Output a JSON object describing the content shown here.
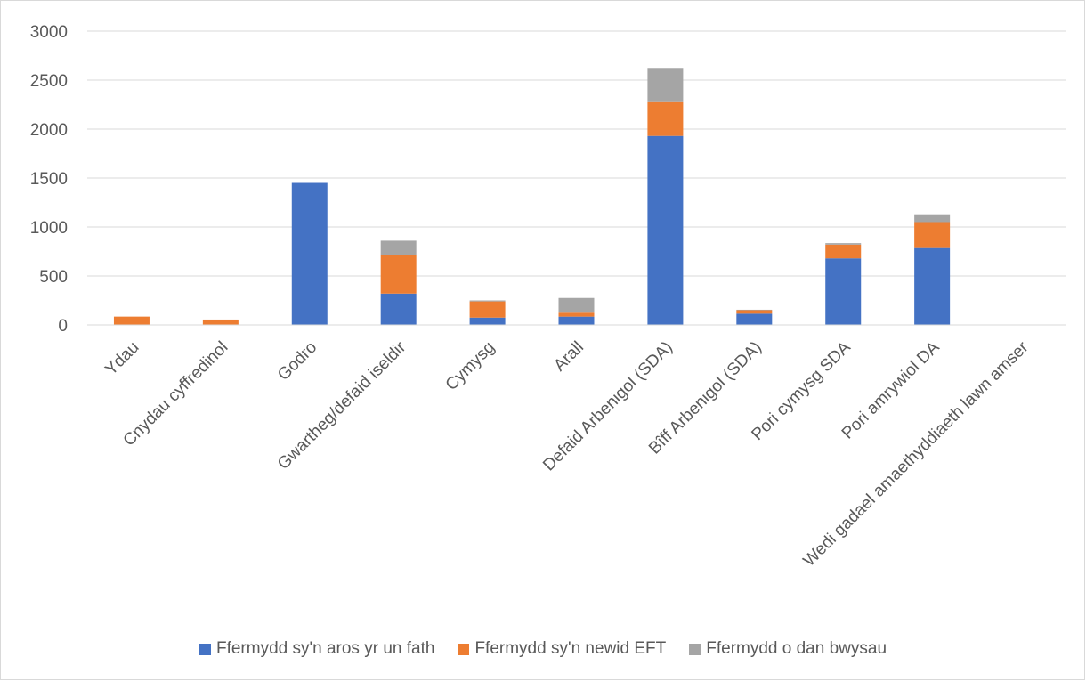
{
  "chart_data": {
    "type": "bar",
    "stacked": true,
    "title": "",
    "xlabel": "",
    "ylabel": "",
    "ylim": [
      0,
      3000
    ],
    "yticks": [
      0,
      500,
      1000,
      1500,
      2000,
      2500,
      3000
    ],
    "grid": true,
    "legend_position": "bottom",
    "categories": [
      "Ydau",
      "Cnydau cyffredinol",
      "Godro",
      "Gwartheg/defaid iseldir",
      "Cymysg",
      "Arall",
      "Defaid Arbenigol (SDA)",
      "Bîff Arbenigol (SDA)",
      "Pori cymysg SDA",
      "Pori amrywiol DA",
      "Wedi gadael amaethyddiaeth lawn amser"
    ],
    "series": [
      {
        "name": "Ffermydd sy'n aros yr un fath",
        "color": "#4472c4",
        "values": [
          0,
          0,
          1450,
          320,
          75,
          85,
          1930,
          115,
          680,
          785,
          0
        ]
      },
      {
        "name": "Ffermydd sy'n newid EFT",
        "color": "#ed7d31",
        "values": [
          85,
          55,
          0,
          390,
          165,
          40,
          345,
          35,
          140,
          265,
          0
        ]
      },
      {
        "name": "Ffermydd o dan bwysau",
        "color": "#a5a5a5",
        "values": [
          0,
          0,
          0,
          150,
          10,
          150,
          350,
          5,
          15,
          80,
          0
        ]
      }
    ]
  }
}
